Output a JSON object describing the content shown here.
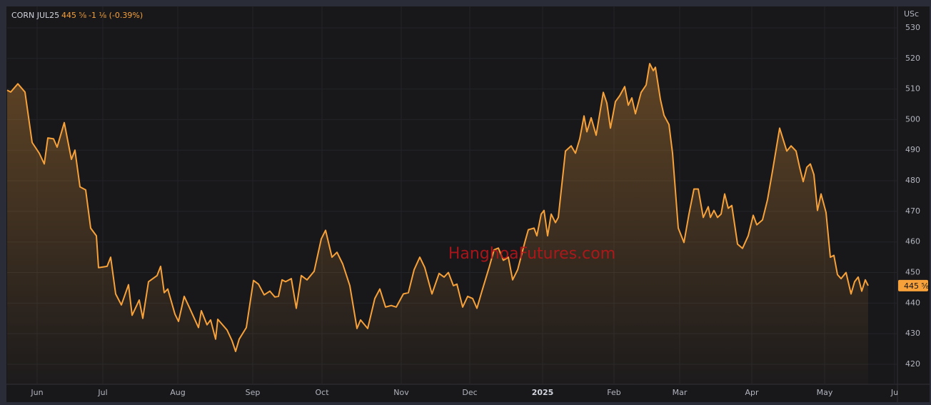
{
  "chart_data": {
    "type": "line",
    "title": "CORN JUL25",
    "price": "445 ⅝",
    "change": "-1 ⅛ (-0.39%)",
    "unit": "USc",
    "watermark": "HanghoaFutures.com",
    "color": "#f7a13a",
    "grid": true,
    "x": [
      0,
      0.5,
      1.5,
      2.5,
      3.5,
      4.5,
      5.2,
      5.7,
      6.5,
      7,
      8,
      9,
      9.5,
      10.2,
      11,
      11.7,
      12.5,
      12.8,
      14,
      14.5,
      15.2,
      16,
      17,
      17.5,
      18.5,
      19,
      19.8,
      21,
      21.5,
      22,
      22.5,
      23.5,
      24,
      24.8,
      25.5,
      26.8,
      27.2,
      28,
      28.5,
      29.2,
      29.5,
      30.8,
      31.5,
      32,
      32.5,
      33.5,
      34.5,
      35.2,
      36,
      36.8,
      37.5,
      38,
      38.5,
      39,
      39.8,
      40.5,
      41.2,
      42,
      43,
      44,
      44.6,
      45.5,
      46.2,
      47,
      48,
      49,
      49.5,
      50.5,
      51.5,
      52.2,
      53,
      53.8,
      54.5,
      55.5,
      56.2,
      57,
      57.8,
      58.5,
      59.5,
      60.5,
      61.2,
      61.8,
      62.5,
      63,
      63.8,
      64.5,
      65.2,
      65.8,
      66.5,
      67.5,
      68.2,
      68.8,
      69.5,
      70.2,
      70.8,
      71.5,
      72.5,
      73,
      73.8,
      74.2,
      74.8,
      75.2,
      75.7,
      76.2,
      76.8,
      77.2,
      78.2,
      79,
      79.6,
      80.2,
      80.8,
      81.2,
      81.8,
      82.5,
      83.5,
      84,
      84.5,
      85.2,
      85.8,
      86.5,
      87,
      87.5,
      88,
      88.8,
      89.5,
      90,
      90.5,
      90.8,
      91.5,
      92,
      92.7,
      93.2,
      94,
      94.8,
      95.5,
      96.2,
      96.8,
      97.5,
      98.2,
      98.5,
      99,
      99.5,
      100,
      100.5,
      101,
      101.5,
      102.3,
      103,
      103.8,
      104.5,
      105,
      105.8,
      106.5,
      107.2,
      108.2,
      109.2,
      109.8,
      110.5,
      111,
      111.5,
      112,
      112.5,
      113,
      113.5,
      114,
      114.7,
      115.3,
      115.8,
      116.3,
      116.8,
      117.5,
      118.2,
      118.7,
      119.2,
      119.7,
      120.2,
      120.6
    ],
    "values": [
      509.6,
      509,
      511.7,
      509,
      492.5,
      489,
      485.5,
      494,
      493.7,
      491,
      499,
      487,
      490,
      478,
      477,
      464.5,
      462,
      451.6,
      452,
      455,
      443,
      439.4,
      446,
      436,
      441,
      435,
      447,
      449,
      452,
      443.4,
      444.6,
      436.4,
      434,
      442.2,
      438.7,
      432,
      437.5,
      432.9,
      434.5,
      428.2,
      434.7,
      431.2,
      427.7,
      424.2,
      428.2,
      432,
      447.4,
      446.2,
      442.7,
      443.9,
      442,
      442.2,
      447.6,
      447,
      448,
      438.3,
      449,
      447.6,
      450.4,
      461,
      463.8,
      455,
      456.6,
      452.8,
      445.7,
      431.7,
      434.5,
      431.7,
      441.5,
      444.6,
      438.7,
      439.2,
      438.7,
      443,
      443.4,
      450.9,
      455,
      451.6,
      443,
      449.7,
      448.5,
      450,
      445.7,
      446.2,
      438.7,
      442.2,
      441.5,
      438.3,
      443.9,
      451.6,
      457.4,
      458,
      454,
      455,
      447.6,
      450.9,
      459.8,
      464,
      464.5,
      462,
      469.1,
      470.3,
      462,
      469.1,
      466.3,
      468,
      489.7,
      491.4,
      489,
      493.7,
      501.2,
      496,
      500.6,
      494.9,
      508.9,
      505.4,
      497.2,
      505.9,
      507.8,
      510.8,
      504.7,
      507.1,
      501.9,
      508.9,
      511.3,
      518.3,
      516,
      517.1,
      506.6,
      501.4,
      498.4,
      489,
      464.5,
      459.8,
      469.1,
      477.3,
      477.3,
      468,
      471.5,
      468,
      470.3,
      468,
      469.1,
      475.7,
      471,
      471.9,
      459.3,
      457.9,
      462,
      468.7,
      465.6,
      467.2,
      473.8,
      483.2,
      497.2,
      489.7,
      491.4,
      489.7,
      484.4,
      479.7,
      484.4,
      485.5,
      482,
      470.3,
      475.7,
      469.6,
      455,
      455.6,
      449.3,
      448,
      450,
      443,
      447,
      448.5,
      443.9,
      447.6,
      445.7
    ],
    "xlim": [
      0,
      124.6
    ],
    "xticks": [
      {
        "value": 4.2,
        "label": "Jun"
      },
      {
        "value": 13.4,
        "label": "Jul"
      },
      {
        "value": 23.9,
        "label": "Aug"
      },
      {
        "value": 34.4,
        "label": "Sep"
      },
      {
        "value": 44.1,
        "label": "Oct"
      },
      {
        "value": 55.2,
        "label": "Nov"
      },
      {
        "value": 64.8,
        "label": "Dec"
      },
      {
        "value": 75.0,
        "label": "2025"
      },
      {
        "value": 85.0,
        "label": "Feb"
      },
      {
        "value": 94.2,
        "label": "Mar"
      },
      {
        "value": 104.3,
        "label": "Apr"
      },
      {
        "value": 114.5,
        "label": "May"
      },
      {
        "value": 124.3,
        "label": "Ju"
      }
    ],
    "ylim": [
      413.45,
      537
    ],
    "yticks": [
      420,
      430,
      440,
      450,
      460,
      470,
      480,
      490,
      500,
      510,
      520,
      530
    ]
  }
}
